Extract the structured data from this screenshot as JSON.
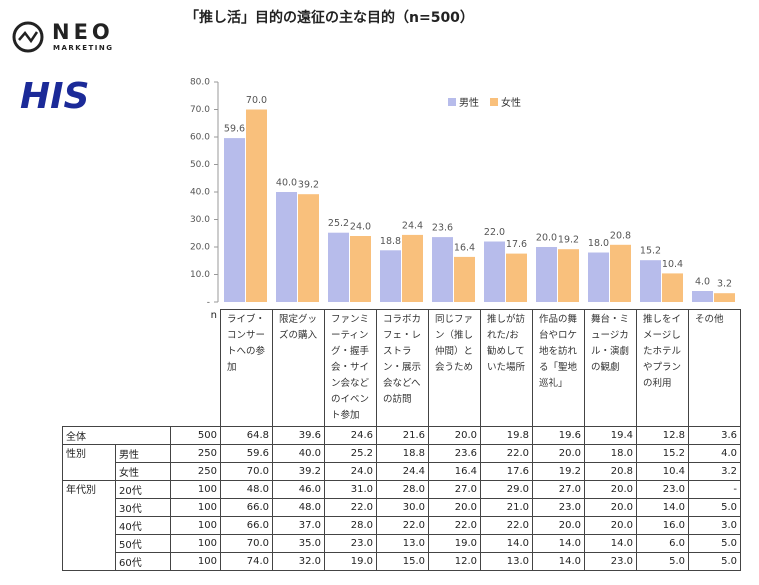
{
  "logos": {
    "brand": "NEO",
    "brand_sub": "MARKETING",
    "partner": "HIS"
  },
  "chart_data": {
    "type": "bar",
    "title": "「推し活」目的の遠征の主な目的（n=500）",
    "categories": [
      "ライブ・コンサートへの参加",
      "限定グッズの購入",
      "ファンミーティング・握手会・サイン会などのイベント参加",
      "コラボカフェ・レストラン・展示会などへの訪問",
      "同じファン（推し仲間）と会うため",
      "推しが訪れた/お勧めしていた場所",
      "作品の舞台やロケ地を訪れる「聖地巡礼」",
      "舞台・ミュージカル・演劇の観劇",
      "推しをイメージしたホテルやプランの利用",
      "その他"
    ],
    "series": [
      {
        "name": "男性",
        "color": "#b7bceb",
        "values": [
          59.6,
          40.0,
          25.2,
          18.8,
          23.6,
          22.0,
          20.0,
          18.0,
          15.2,
          4.0
        ],
        "value_labels": [
          "59.6",
          "40.0",
          "25.2",
          "18.8",
          "23.6",
          "22.0",
          "20.0",
          "18.0",
          "15.2",
          "4.0"
        ]
      },
      {
        "name": "女性",
        "color": "#f9c07c",
        "values": [
          70.0,
          39.2,
          24.0,
          24.4,
          16.4,
          17.6,
          19.2,
          20.8,
          10.4,
          3.2
        ],
        "value_labels": [
          "70.0",
          "39.2",
          "24.0",
          "24.4",
          "16.4",
          "17.6",
          "19.2",
          "20.8",
          "10.4",
          "3.2"
        ]
      }
    ],
    "ylim": [
      0,
      80
    ],
    "yticks": [
      {
        "value": 0,
        "label": "-"
      },
      {
        "value": 10,
        "label": "10.0"
      },
      {
        "value": 20,
        "label": "20.0"
      },
      {
        "value": 30,
        "label": "30.0"
      },
      {
        "value": 40,
        "label": "40.0"
      },
      {
        "value": 50,
        "label": "50.0"
      },
      {
        "value": 60,
        "label": "60.0"
      },
      {
        "value": 70,
        "label": "70.0"
      },
      {
        "value": 80,
        "label": "80.0"
      }
    ],
    "legend": "top-right"
  },
  "table": {
    "n_header": "n",
    "rows": [
      {
        "group": "全体",
        "n": "500",
        "values": [
          "64.8",
          "39.6",
          "24.6",
          "21.6",
          "20.0",
          "19.8",
          "19.6",
          "19.4",
          "12.8",
          "3.6"
        ]
      },
      {
        "group": "性別",
        "subrows": [
          {
            "label": "男性",
            "n": "250",
            "values": [
              "59.6",
              "40.0",
              "25.2",
              "18.8",
              "23.6",
              "22.0",
              "20.0",
              "18.0",
              "15.2",
              "4.0"
            ]
          },
          {
            "label": "女性",
            "n": "250",
            "values": [
              "70.0",
              "39.2",
              "24.0",
              "24.4",
              "16.4",
              "17.6",
              "19.2",
              "20.8",
              "10.4",
              "3.2"
            ]
          }
        ]
      },
      {
        "group": "年代別",
        "subrows": [
          {
            "label": "20代",
            "n": "100",
            "values": [
              "48.0",
              "46.0",
              "31.0",
              "28.0",
              "27.0",
              "29.0",
              "27.0",
              "20.0",
              "23.0",
              "-"
            ]
          },
          {
            "label": "30代",
            "n": "100",
            "values": [
              "66.0",
              "48.0",
              "22.0",
              "30.0",
              "20.0",
              "21.0",
              "23.0",
              "20.0",
              "14.0",
              "5.0"
            ]
          },
          {
            "label": "40代",
            "n": "100",
            "values": [
              "66.0",
              "37.0",
              "28.0",
              "22.0",
              "22.0",
              "22.0",
              "20.0",
              "20.0",
              "16.0",
              "3.0"
            ]
          },
          {
            "label": "50代",
            "n": "100",
            "values": [
              "70.0",
              "35.0",
              "23.0",
              "13.0",
              "19.0",
              "14.0",
              "14.0",
              "14.0",
              "6.0",
              "5.0"
            ]
          },
          {
            "label": "60代",
            "n": "100",
            "values": [
              "74.0",
              "32.0",
              "19.0",
              "15.0",
              "12.0",
              "13.0",
              "14.0",
              "23.0",
              "5.0",
              "5.0"
            ]
          }
        ]
      }
    ]
  }
}
